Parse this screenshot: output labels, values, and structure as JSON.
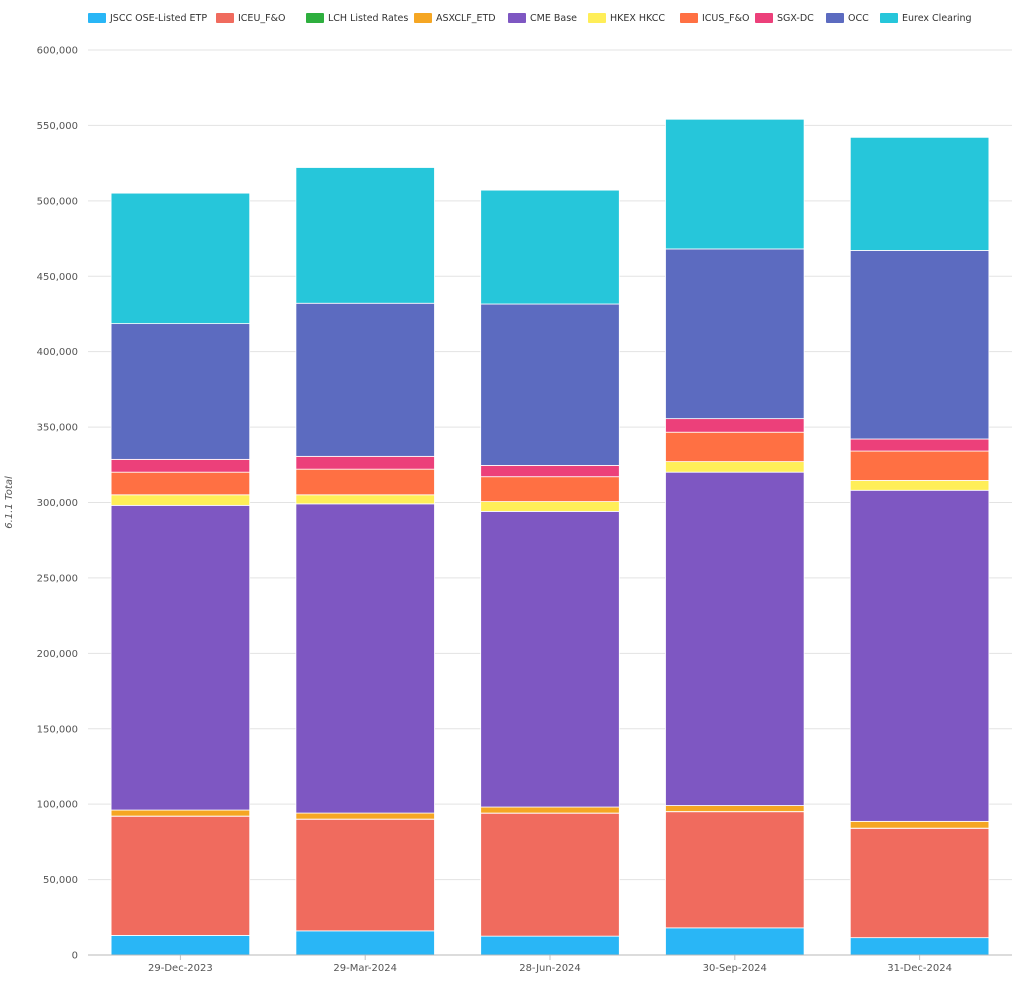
{
  "chart_data": {
    "type": "bar",
    "stacked": true,
    "ylabel": "6.1.1 Total",
    "xlabel": "",
    "ylim": [
      0,
      600000
    ],
    "yticks": [
      "0",
      "50,000",
      "100,000",
      "150,000",
      "200,000",
      "250,000",
      "300,000",
      "350,000",
      "400,000",
      "450,000",
      "500,000",
      "550,000",
      "600,000"
    ],
    "ytick_values": [
      0,
      50000,
      100000,
      150000,
      200000,
      250000,
      300000,
      350000,
      400000,
      450000,
      500000,
      550000,
      600000
    ],
    "grid": true,
    "legend_position": "top",
    "categories": [
      "29-Dec-2023",
      "29-Mar-2024",
      "28-Jun-2024",
      "30-Sep-2024",
      "31-Dec-2024"
    ],
    "series": [
      {
        "name": "JSCC OSE-Listed ETP",
        "color": "#29b6f6",
        "values": [
          13000,
          16000,
          12500,
          18000,
          11500
        ]
      },
      {
        "name": "ICEU_F&O",
        "color": "#f06b5e",
        "values": [
          79000,
          74000,
          81500,
          77000,
          72500
        ]
      },
      {
        "name": "LCH Listed Rates",
        "color": "#2eaf3e",
        "values": [
          100,
          100,
          100,
          100,
          100
        ]
      },
      {
        "name": "ASXCLF_ETD",
        "color": "#f5a623",
        "values": [
          4000,
          4000,
          4000,
          4000,
          4500
        ]
      },
      {
        "name": "CME Base",
        "color": "#7e57c2",
        "values": [
          202000,
          205000,
          196000,
          221000,
          219500
        ]
      },
      {
        "name": "HKEX HKCC",
        "color": "#ffee58",
        "values": [
          7000,
          6000,
          6500,
          7000,
          6500
        ]
      },
      {
        "name": "ICUS_F&O",
        "color": "#ff7043",
        "values": [
          15000,
          17000,
          16500,
          19500,
          19500
        ]
      },
      {
        "name": "SGX-DC",
        "color": "#ec407a",
        "values": [
          8500,
          8500,
          7500,
          9000,
          8000
        ]
      },
      {
        "name": "OCC",
        "color": "#5c6bc0",
        "values": [
          90000,
          101500,
          107000,
          112500,
          125000
        ]
      },
      {
        "name": "Eurex Clearing",
        "color": "#26c6da",
        "values": [
          86500,
          90000,
          75500,
          86000,
          75000
        ]
      }
    ]
  }
}
